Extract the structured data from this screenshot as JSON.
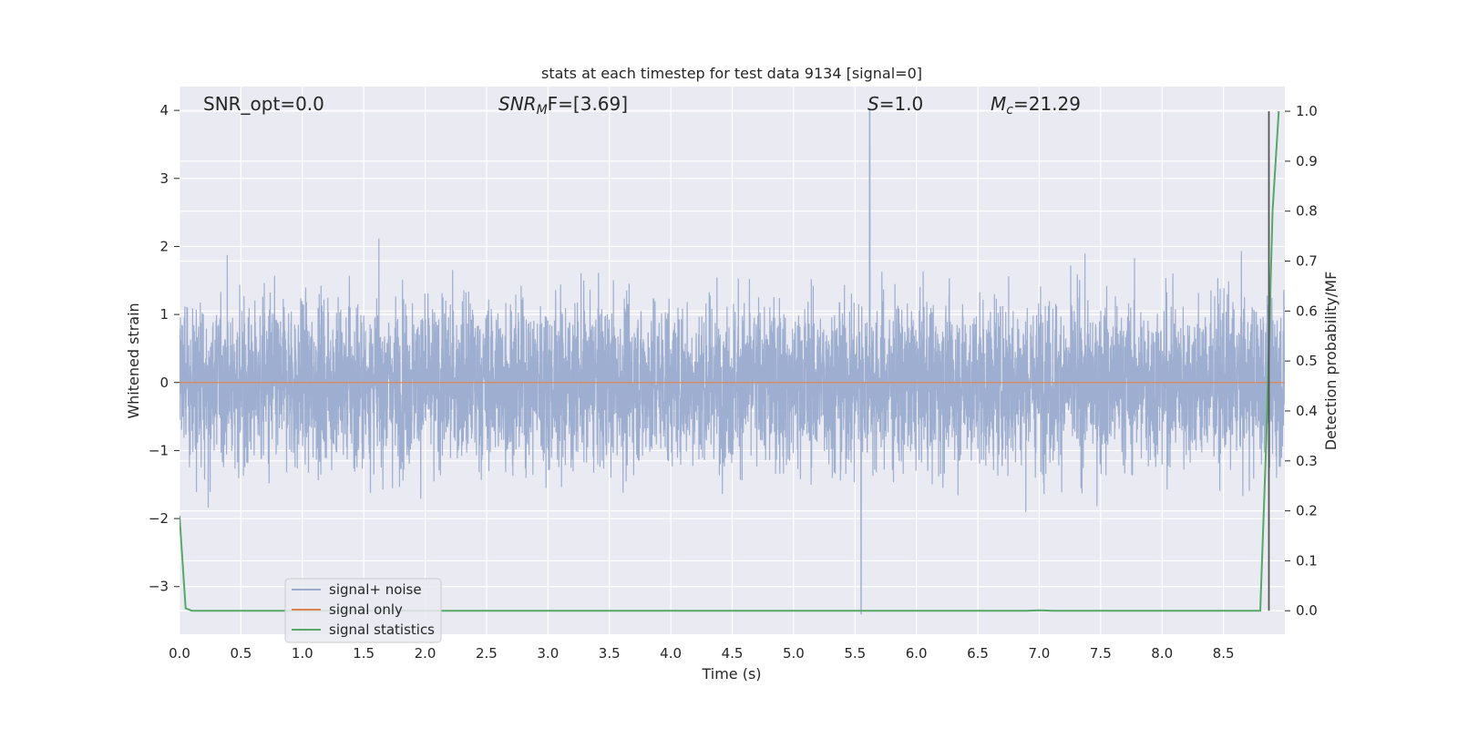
{
  "chart_data": {
    "type": "line",
    "title": "stats at each timestep for test data 9134 [signal=0]",
    "xlabel": "Time (s)",
    "ylabel": "Whitened strain",
    "y2label": "Detection probability/MF",
    "xlim": [
      0.0,
      9.0
    ],
    "ylim": [
      -3.7,
      4.35
    ],
    "y2lim": [
      -0.047,
      1.0494
    ],
    "xticks": [
      "0.0",
      "0.5",
      "1.0",
      "1.5",
      "2.0",
      "2.5",
      "3.0",
      "3.5",
      "4.0",
      "4.5",
      "5.0",
      "5.5",
      "6.0",
      "6.5",
      "7.0",
      "7.5",
      "8.0",
      "8.5"
    ],
    "yticks": [
      "4",
      "3",
      "2",
      "1",
      "0",
      "−1",
      "−2",
      "−3"
    ],
    "y2ticks": [
      "1.0",
      "0.9",
      "0.8",
      "0.7",
      "0.6",
      "0.5",
      "0.4",
      "0.3",
      "0.2",
      "0.1",
      "0.0"
    ],
    "grid": true,
    "legend_placement": "lower-left",
    "annotations": [
      {
        "prefix": "SNR_opt=0.0",
        "sub": "",
        "suffix": ""
      },
      {
        "prefix": "SNR",
        "sub": "M",
        "suffix": "F=[3.69]"
      },
      {
        "prefix": "S",
        "sub": "",
        "suffix": "=1.0"
      },
      {
        "prefix": "M",
        "sub": "c",
        "suffix": "=21.29"
      }
    ],
    "series": [
      {
        "name": "signal+ noise",
        "color": "#9aabce",
        "description_values": {
          "approx_range": [
            -3.4,
            4.0
          ],
          "spike_max_time": 5.62,
          "spike_max_value": 4.0,
          "spike_min_time": 5.55,
          "spike_min_value": -3.4
        }
      },
      {
        "name": "signal only",
        "color": "#dd8452",
        "constant_value": 0.0
      },
      {
        "name": "signal statistics",
        "color": "#55a868",
        "axis": "right",
        "x": [
          0.0,
          0.05,
          0.1,
          0.15,
          1.0,
          2.0,
          3.0,
          4.0,
          5.0,
          6.0,
          6.9,
          7.0,
          7.1,
          8.0,
          8.8,
          8.85,
          8.9,
          8.95
        ],
        "y": [
          0.19,
          0.005,
          0.0,
          0.0,
          0.0,
          0.0,
          0.0,
          0.0,
          0.0,
          0.0,
          0.0,
          0.001,
          0.0,
          0.0,
          0.0,
          0.35,
          0.8,
          1.0
        ]
      }
    ],
    "marker_line": {
      "x": 8.87,
      "color": "#555555"
    }
  }
}
